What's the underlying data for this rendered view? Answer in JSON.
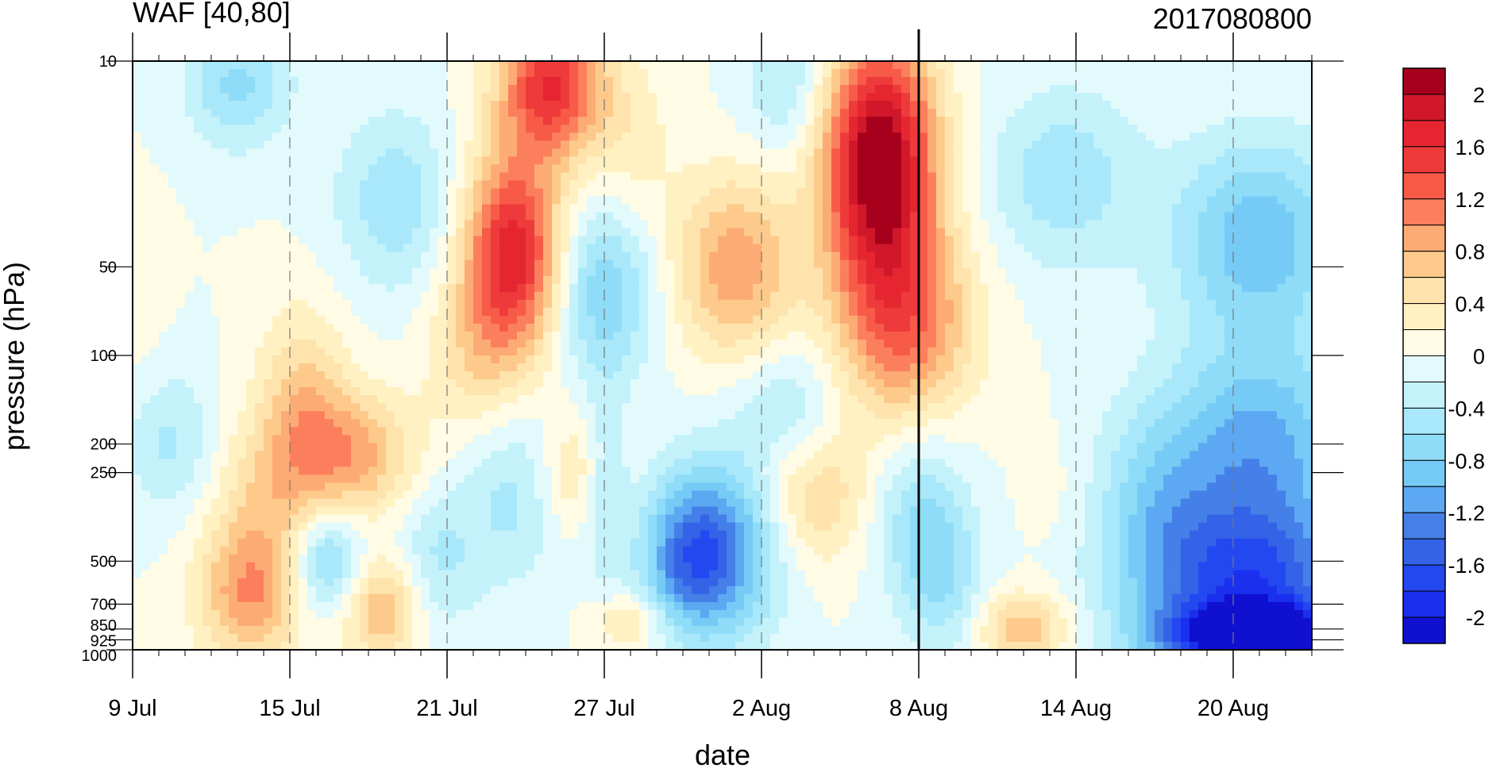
{
  "chart_data": {
    "type": "heatmap",
    "title_left": "WAF [40,80]",
    "title_right": "2017080800",
    "xlabel": "date",
    "ylabel": "pressure (hPa)",
    "x_range": [
      "2017-07-09",
      "2017-08-23"
    ],
    "x_ticks": [
      {
        "date": "2017-07-09",
        "label": "9 Jul"
      },
      {
        "date": "2017-07-15",
        "label": "15 Jul"
      },
      {
        "date": "2017-07-21",
        "label": "21 Jul"
      },
      {
        "date": "2017-07-27",
        "label": "27 Jul"
      },
      {
        "date": "2017-08-02",
        "label": "2 Aug"
      },
      {
        "date": "2017-08-08",
        "label": "8 Aug"
      },
      {
        "date": "2017-08-14",
        "label": "14 Aug"
      },
      {
        "date": "2017-08-20",
        "label": "20 Aug"
      }
    ],
    "y_scale": "log",
    "y_reversed": true,
    "y_range": [
      1000,
      10
    ],
    "y_ticks": [
      {
        "value": 10,
        "label": "10"
      },
      {
        "value": 50,
        "label": "50"
      },
      {
        "value": 100,
        "label": "100"
      },
      {
        "value": 200,
        "label": "200"
      },
      {
        "value": 250,
        "label": "250"
      },
      {
        "value": 500,
        "label": "500"
      },
      {
        "value": 700,
        "label": "700"
      },
      {
        "value": 850,
        "label": "850"
      },
      {
        "value": 925,
        "label": "925"
      },
      {
        "value": 1000,
        "label": "1000"
      }
    ],
    "marker_line_date": "2017-08-08",
    "dashed_gridlines": "vertical at x tick dates",
    "colorbar": {
      "levels": [
        -2.2,
        -2.0,
        -1.8,
        -1.6,
        -1.4,
        -1.2,
        -1.0,
        -0.8,
        -0.6,
        -0.4,
        -0.2,
        0.0,
        0.2,
        0.4,
        0.6,
        0.8,
        1.0,
        1.2,
        1.4,
        1.6,
        1.8,
        2.0,
        2.2
      ],
      "colors": [
        "#1010d0",
        "#1a30ee",
        "#2448f0",
        "#3463e8",
        "#457fe8",
        "#5ca8f2",
        "#76cbf6",
        "#8fdcf8",
        "#a8e8fa",
        "#c4f2fb",
        "#e3fafd",
        "#fffbe5",
        "#fff1c2",
        "#fee3ad",
        "#fdca8c",
        "#fdab74",
        "#fb7f5c",
        "#f85a48",
        "#ee3a3a",
        "#e52630",
        "#d0182a",
        "#a6001c"
      ],
      "labels": [
        {
          "value": 2.0,
          "text": "2"
        },
        {
          "value": 1.6,
          "text": "1.6"
        },
        {
          "value": 1.2,
          "text": "1.2"
        },
        {
          "value": 0.8,
          "text": "0.8"
        },
        {
          "value": 0.4,
          "text": "0.4"
        },
        {
          "value": 0.0,
          "text": "0"
        },
        {
          "value": -0.4,
          "text": "-0.4"
        },
        {
          "value": -0.8,
          "text": "-0.8"
        },
        {
          "value": -1.2,
          "text": "-1.2"
        },
        {
          "value": -1.6,
          "text": "-1.6"
        },
        {
          "value": -2.0,
          "text": "-2"
        }
      ]
    },
    "features": [
      {
        "date": "2017-07-09",
        "p": 60,
        "v": 0.15,
        "sx": 0.8,
        "sy": 0.5
      },
      {
        "date": "2017-07-13.5",
        "p": 650,
        "v": 0.95,
        "sx": 1.4,
        "sy": 0.38
      },
      {
        "date": "2017-07-14",
        "p": 300,
        "v": 0.45,
        "sx": 1.5,
        "sy": 0.45
      },
      {
        "date": "2017-07-15.5",
        "p": 150,
        "v": 0.65,
        "sx": 1.2,
        "sy": 0.55
      },
      {
        "date": "2017-07-17.5",
        "p": 220,
        "v": 0.85,
        "sx": 1.6,
        "sy": 0.35
      },
      {
        "date": "2017-07-18.5",
        "p": 720,
        "v": 0.85,
        "sx": 1.1,
        "sy": 0.3
      },
      {
        "date": "2017-07-16.5",
        "p": 500,
        "v": -0.85,
        "sx": 1.0,
        "sy": 0.3
      },
      {
        "date": "2017-07-13",
        "p": 12,
        "v": -0.65,
        "sx": 1.4,
        "sy": 0.35
      },
      {
        "date": "2017-07-19",
        "p": 30,
        "v": -0.55,
        "sx": 1.6,
        "sy": 0.5
      },
      {
        "date": "2017-07-10.5",
        "p": 200,
        "v": -0.45,
        "sx": 1.2,
        "sy": 0.4
      },
      {
        "date": "2017-07-20.5",
        "p": 500,
        "v": -0.45,
        "sx": 1.2,
        "sy": 0.4
      },
      {
        "date": "2017-07-23.5",
        "p": 45,
        "v": 1.75,
        "sx": 1.3,
        "sy": 0.55
      },
      {
        "date": "2017-07-25",
        "p": 12,
        "v": 1.6,
        "sx": 1.4,
        "sy": 0.4
      },
      {
        "date": "2017-07-22",
        "p": 100,
        "v": 0.45,
        "sx": 1.3,
        "sy": 0.45
      },
      {
        "date": "2017-07-27",
        "p": 60,
        "v": -0.8,
        "sx": 1.3,
        "sy": 0.5
      },
      {
        "date": "2017-07-27",
        "p": 280,
        "v": -0.55,
        "sx": 0.6,
        "sy": 0.5
      },
      {
        "date": "2017-07-26",
        "p": 250,
        "v": 0.5,
        "sx": 1.0,
        "sy": 0.35
      },
      {
        "date": "2017-07-28",
        "p": 800,
        "v": 0.5,
        "sx": 1.0,
        "sy": 0.15
      },
      {
        "date": "2017-07-23.5",
        "p": 300,
        "v": -0.45,
        "sx": 1.4,
        "sy": 0.5
      },
      {
        "date": "2017-07-28",
        "p": 20,
        "v": 0.3,
        "sx": 1.2,
        "sy": 0.5
      },
      {
        "date": "2017-08-01",
        "p": 50,
        "v": 0.95,
        "sx": 1.6,
        "sy": 0.5
      },
      {
        "date": "2017-07-31.5",
        "p": 450,
        "v": -1.2,
        "sx": 1.6,
        "sy": 0.5
      },
      {
        "date": "2017-07-30",
        "p": 500,
        "v": -0.8,
        "sx": 1.2,
        "sy": 0.4
      },
      {
        "date": "2017-08-03",
        "p": 150,
        "v": -0.45,
        "sx": 1.4,
        "sy": 0.35
      },
      {
        "date": "2017-08-04",
        "p": 300,
        "v": 0.6,
        "sx": 1.6,
        "sy": 0.4
      },
      {
        "date": "2017-08-03",
        "p": 12,
        "v": -0.45,
        "sx": 1.2,
        "sy": 0.4
      },
      {
        "date": "2017-08-06.5",
        "p": 22,
        "v": 2.3,
        "sx": 1.5,
        "sy": 0.7
      },
      {
        "date": "2017-08-07.5",
        "p": 80,
        "v": 1.1,
        "sx": 1.8,
        "sy": 0.55
      },
      {
        "date": "2017-08-08",
        "p": 350,
        "v": -0.6,
        "sx": 1.3,
        "sy": 0.5
      },
      {
        "date": "2017-08-09",
        "p": 600,
        "v": -0.45,
        "sx": 1.0,
        "sy": 0.4
      },
      {
        "date": "2017-08-12",
        "p": 850,
        "v": 0.75,
        "sx": 1.2,
        "sy": 0.2
      },
      {
        "date": "2017-08-13",
        "p": 300,
        "v": 0.1,
        "sx": 0.9,
        "sy": 0.35
      },
      {
        "date": "2017-08-13.5",
        "p": 25,
        "v": -0.55,
        "sx": 2.0,
        "sy": 0.5
      },
      {
        "date": "2017-08-20.5",
        "p": 600,
        "v": -1.6,
        "sx": 3.0,
        "sy": 0.45
      },
      {
        "date": "2017-08-21",
        "p": 920,
        "v": -2.1,
        "sx": 2.5,
        "sy": 0.18
      },
      {
        "date": "2017-08-21",
        "p": 200,
        "v": -1.05,
        "sx": 2.6,
        "sy": 0.55
      },
      {
        "date": "2017-08-21",
        "p": 40,
        "v": -0.95,
        "sx": 2.4,
        "sy": 0.55
      },
      {
        "date": "2017-08-17",
        "p": 300,
        "v": -0.5,
        "sx": 1.6,
        "sy": 0.5
      }
    ]
  }
}
